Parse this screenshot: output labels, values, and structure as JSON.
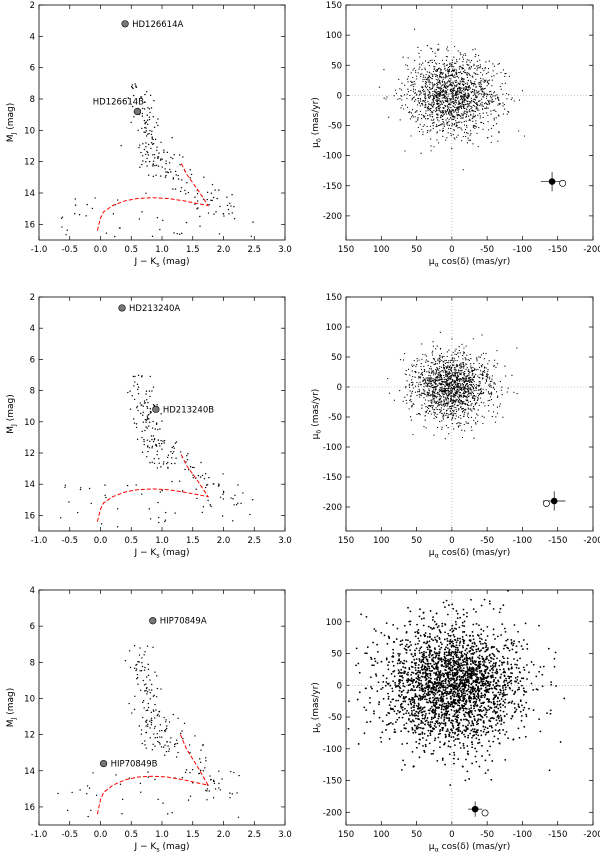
{
  "chart_data": [
    {
      "type": "scatter",
      "panel": "cmd",
      "xlabel": "J − K",
      "xlabel_sub": "s",
      "xlabel_unit": "(mag)",
      "ylabel": "M",
      "ylabel_sub": "J",
      "ylabel_unit": "(mag)",
      "xlim": [
        -1.0,
        3.0
      ],
      "ylim": [
        17.0,
        2.0
      ],
      "y_inverted": true,
      "xticks": [
        "-1.0",
        "-0.5",
        "0.0",
        "0.5",
        "1.0",
        "1.5",
        "2.0",
        "2.5",
        "3.0"
      ],
      "yticks": [
        "2",
        "4",
        "6",
        "8",
        "10",
        "12",
        "14",
        "16"
      ],
      "labeled_stars": [
        {
          "name": "HD126614A",
          "x": 0.4,
          "y": 3.2
        },
        {
          "name": "HD126614B",
          "x": 0.6,
          "y": 8.8
        }
      ],
      "sequence_curve": [
        [
          -0.05,
          16.4
        ],
        [
          0.0,
          15.6
        ],
        [
          0.05,
          15.2
        ],
        [
          0.2,
          14.8
        ],
        [
          0.4,
          14.5
        ],
        [
          0.6,
          14.35
        ],
        [
          0.85,
          14.3
        ],
        [
          1.1,
          14.35
        ],
        [
          1.35,
          14.5
        ],
        [
          1.55,
          14.65
        ],
        [
          1.75,
          14.8
        ],
        [
          1.6,
          13.9
        ],
        [
          1.4,
          12.8
        ],
        [
          1.3,
          12.0
        ]
      ]
    },
    {
      "type": "scatter",
      "panel": "proper-motion",
      "xlabel": "μ",
      "xlabel_sub": "α",
      "xlabel_unit": "cos(δ) (mas/yr)",
      "ylabel": "μ",
      "ylabel_sub": "δ",
      "ylabel_unit": "(mas/yr)",
      "xlim": [
        150,
        -200
      ],
      "ylim": [
        -240,
        150
      ],
      "xticks": [
        "150",
        "100",
        "50",
        "0",
        "-50",
        "-100",
        "-150",
        "-200"
      ],
      "yticks": [
        "150",
        "100",
        "50",
        "0",
        "-50",
        "-100",
        "-150",
        "-200"
      ],
      "field_spread": 32,
      "target_filled": {
        "x": -142,
        "y": -143,
        "ex": 16,
        "ey": 16
      },
      "target_open": {
        "x": -157,
        "y": -146
      }
    },
    {
      "type": "scatter",
      "panel": "cmd",
      "xlabel": "J − K",
      "xlabel_sub": "s",
      "xlabel_unit": "(mag)",
      "ylabel": "M",
      "ylabel_sub": "J",
      "ylabel_unit": "(mag)",
      "xlim": [
        -1.0,
        3.0
      ],
      "ylim": [
        17.0,
        2.0
      ],
      "y_inverted": true,
      "xticks": [
        "-1.0",
        "-0.5",
        "0.0",
        "0.5",
        "1.0",
        "1.5",
        "2.0",
        "2.5",
        "3.0"
      ],
      "yticks": [
        "2",
        "4",
        "6",
        "8",
        "10",
        "12",
        "14",
        "16"
      ],
      "labeled_stars": [
        {
          "name": "HD213240A",
          "x": 0.35,
          "y": 2.7
        },
        {
          "name": "HD213240B",
          "x": 0.9,
          "y": 9.2
        }
      ],
      "sequence_curve": [
        [
          -0.05,
          16.4
        ],
        [
          0.0,
          15.6
        ],
        [
          0.05,
          15.2
        ],
        [
          0.2,
          14.8
        ],
        [
          0.4,
          14.5
        ],
        [
          0.6,
          14.35
        ],
        [
          0.85,
          14.3
        ],
        [
          1.1,
          14.35
        ],
        [
          1.35,
          14.5
        ],
        [
          1.55,
          14.65
        ],
        [
          1.75,
          14.8
        ],
        [
          1.6,
          13.9
        ],
        [
          1.4,
          12.8
        ],
        [
          1.3,
          12.0
        ]
      ]
    },
    {
      "type": "scatter",
      "panel": "proper-motion",
      "xlabel": "μ",
      "xlabel_sub": "α",
      "xlabel_unit": "cos(δ) (mas/yr)",
      "ylabel": "μ",
      "ylabel_sub": "δ",
      "ylabel_unit": "(mas/yr)",
      "xlim": [
        150,
        -200
      ],
      "ylim": [
        -240,
        150
      ],
      "xticks": [
        "150",
        "100",
        "50",
        "0",
        "-50",
        "-100",
        "-150",
        "-200"
      ],
      "yticks": [
        "150",
        "100",
        "50",
        "0",
        "-50",
        "-100",
        "-150",
        "-200"
      ],
      "field_spread": 28,
      "target_filled": {
        "x": -145,
        "y": -190,
        "ex": 16,
        "ey": 16
      },
      "target_open": {
        "x": -134,
        "y": -194
      }
    },
    {
      "type": "scatter",
      "panel": "cmd",
      "xlabel": "J − K",
      "xlabel_sub": "s",
      "xlabel_unit": "(mag)",
      "ylabel": "M",
      "ylabel_sub": "J",
      "ylabel_unit": "(mag)",
      "xlim": [
        -1.0,
        3.0
      ],
      "ylim": [
        17.0,
        4.0
      ],
      "y_inverted": true,
      "xticks": [
        "-1.0",
        "-0.5",
        "0.0",
        "0.5",
        "1.0",
        "1.5",
        "2.0",
        "2.5",
        "3.0"
      ],
      "yticks": [
        "4",
        "6",
        "8",
        "10",
        "12",
        "14",
        "16"
      ],
      "labeled_stars": [
        {
          "name": "HIP70849A",
          "x": 0.85,
          "y": 5.7
        },
        {
          "name": "HIP70849B",
          "x": 0.05,
          "y": 13.6
        }
      ],
      "sequence_curve": [
        [
          -0.05,
          16.4
        ],
        [
          0.0,
          15.6
        ],
        [
          0.05,
          15.2
        ],
        [
          0.2,
          14.8
        ],
        [
          0.4,
          14.5
        ],
        [
          0.6,
          14.35
        ],
        [
          0.85,
          14.3
        ],
        [
          1.1,
          14.35
        ],
        [
          1.35,
          14.5
        ],
        [
          1.55,
          14.65
        ],
        [
          1.75,
          14.8
        ],
        [
          1.6,
          13.9
        ],
        [
          1.4,
          12.8
        ],
        [
          1.3,
          12.0
        ]
      ]
    },
    {
      "type": "scatter",
      "panel": "proper-motion",
      "xlabel": "μ",
      "xlabel_sub": "α",
      "xlabel_unit": "cos(δ) (mas/yr)",
      "ylabel": "μ",
      "ylabel_sub": "δ",
      "ylabel_unit": "(mas/yr)",
      "xlim": [
        150,
        -200
      ],
      "ylim": [
        -220,
        150
      ],
      "xticks": [
        "150",
        "100",
        "50",
        "0",
        "-50",
        "-100",
        "-150",
        "-200"
      ],
      "yticks": [
        "100",
        "50",
        "0",
        "-50",
        "-100",
        "-150",
        "-200"
      ],
      "field_spread": 48,
      "target_filled": {
        "x": -33,
        "y": -195,
        "ex": 10,
        "ey": 12
      },
      "target_open": {
        "x": -47,
        "y": -201
      }
    }
  ],
  "colors": {
    "points": "#000000",
    "sequence": "#ff0000",
    "star_fill": "#777777",
    "zero_line": "#999999"
  }
}
